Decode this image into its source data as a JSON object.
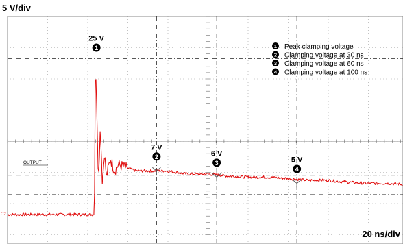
{
  "chart_data": {
    "type": "line",
    "title": "",
    "ylabel": "5 V/div",
    "xlabel": "20 ns/div",
    "trace_label": "OUTPUT",
    "ground_marker": "C2",
    "trace_color": "#e01010",
    "grid": true,
    "grid_divisions": {
      "x": 10,
      "y": 8
    },
    "xlim_ns": [
      0,
      200
    ],
    "ylim_V": [
      -10,
      30
    ],
    "series": [
      {
        "name": "OUTPUT",
        "x": [
          0,
          20,
          23,
          24,
          24.5,
          25,
          25.5,
          26,
          27,
          28,
          29,
          30,
          32,
          34,
          36,
          40,
          45,
          50,
          60,
          70,
          80,
          90,
          100,
          110,
          120,
          130,
          140,
          150,
          160,
          170,
          180,
          190,
          198,
          200,
          202,
          210,
          220,
          230,
          235,
          238,
          240
        ],
        "y": [
          0,
          0,
          0,
          0,
          25,
          20,
          12,
          6,
          14,
          5,
          10,
          6,
          9,
          7,
          8,
          7.5,
          7,
          7,
          7,
          6.5,
          6.5,
          6.2,
          6,
          6,
          5.8,
          5.5,
          5.5,
          5.2,
          5,
          5,
          4.8,
          4.6,
          4.3,
          4.2,
          4.3,
          4.2,
          4,
          3.8,
          3.6,
          3.5,
          3.5
        ]
      }
    ],
    "annotations": [
      {
        "id": "1",
        "marker": "1",
        "value_label": "25 V",
        "x": 25,
        "y": 25
      },
      {
        "id": "2",
        "marker": "2",
        "value_label": "7 V",
        "x": 55,
        "y": 7
      },
      {
        "id": "3",
        "marker": "3",
        "value_label": "6 V",
        "x": 85,
        "y": 6
      },
      {
        "id": "4",
        "marker": "4",
        "value_label": "5 V",
        "x": 125,
        "y": 5
      }
    ],
    "legend": {
      "placement": "top-right",
      "items": [
        {
          "marker": "1",
          "label": "Peak clamping voltage"
        },
        {
          "marker": "2",
          "label": "Clamping voltage at 30 ns"
        },
        {
          "marker": "3",
          "label": "Clamping voltage at 60 ns"
        },
        {
          "marker": "4",
          "label": "Clamping voltage at 100 ns"
        }
      ]
    }
  }
}
